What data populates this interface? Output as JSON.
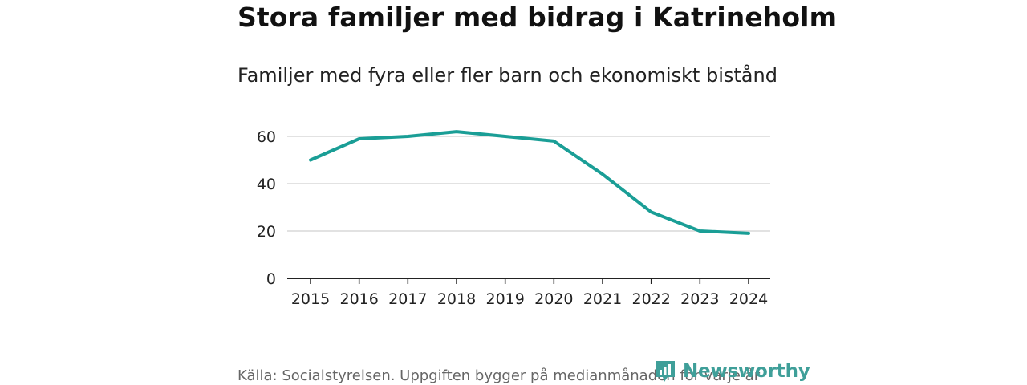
{
  "header": {
    "title": "Stora familjer med bidrag i Katrineholm",
    "subtitle": "Familjer med fyra eller fler barn och ekonomiskt bistånd"
  },
  "footer": {
    "source": "Källa: Socialstyrelsen. Uppgiften bygger på medianmånaden för varje år"
  },
  "logo": {
    "text": "Newsworthy"
  },
  "colors": {
    "line": "#1a9e96",
    "grid": "#d9d9d9",
    "axis": "#222222",
    "brand": "#3f9f99"
  },
  "chart_data": {
    "type": "line",
    "title": "Stora familjer med bidrag i Katrineholm",
    "subtitle": "Familjer med fyra eller fler barn och ekonomiskt bistånd",
    "xlabel": "",
    "ylabel": "",
    "x": [
      "2015",
      "2016",
      "2017",
      "2018",
      "2019",
      "2020",
      "2021",
      "2022",
      "2023",
      "2024"
    ],
    "series": [
      {
        "name": "Familjer",
        "values": [
          50,
          59,
          60,
          62,
          60,
          58,
          44,
          28,
          20,
          19
        ]
      }
    ],
    "ylim": [
      0,
      60
    ],
    "yticks": [
      "0",
      "20",
      "40",
      "60"
    ],
    "grid": true
  }
}
